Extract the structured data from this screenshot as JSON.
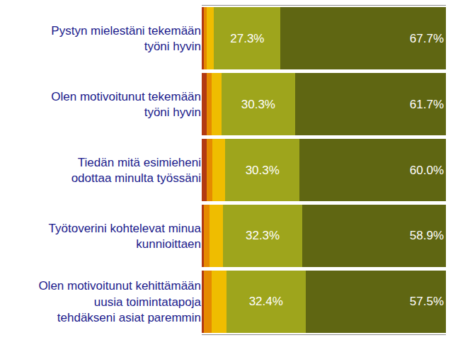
{
  "chart_data": {
    "type": "bar",
    "orientation": "horizontal",
    "stacked": true,
    "tick_labels": "y",
    "xlim": [
      0,
      100
    ],
    "categories": [
      "Pystyn mielestäni tekemään työni hyvin",
      "Olen motivoitunut tekemään työni hyvin",
      "Tiedän mitä esimieheni odottaa minulta työssäni",
      "Työtoverini kohtelevat minua kunnioittaen",
      "Olen motivoitunut kehittämään uusia toimintatapoja tehdäkseni asiat paremmin"
    ],
    "series": [
      {
        "color": "#b23a12",
        "values": [
          1.0,
          2.0,
          2.0,
          1.0,
          1.0
        ]
      },
      {
        "color": "#e58a00",
        "values": [
          1.0,
          2.0,
          2.3,
          2.3,
          3.0
        ]
      },
      {
        "color": "#efbd00",
        "values": [
          3.0,
          4.0,
          5.4,
          5.5,
          6.1
        ]
      },
      {
        "color": "#9ea51c",
        "values": [
          27.3,
          30.3,
          30.3,
          32.3,
          32.4
        ],
        "data_labels": true,
        "value_labels": [
          "27.3%",
          "30.3%",
          "30.3%",
          "32.3%",
          "32.4%"
        ]
      },
      {
        "color": "#5f6612",
        "values": [
          67.7,
          61.7,
          60.0,
          58.9,
          57.5
        ],
        "data_labels": true,
        "value_labels": [
          "67.7%",
          "61.7%",
          "60.0%",
          "58.9%",
          "57.5%"
        ]
      }
    ]
  }
}
